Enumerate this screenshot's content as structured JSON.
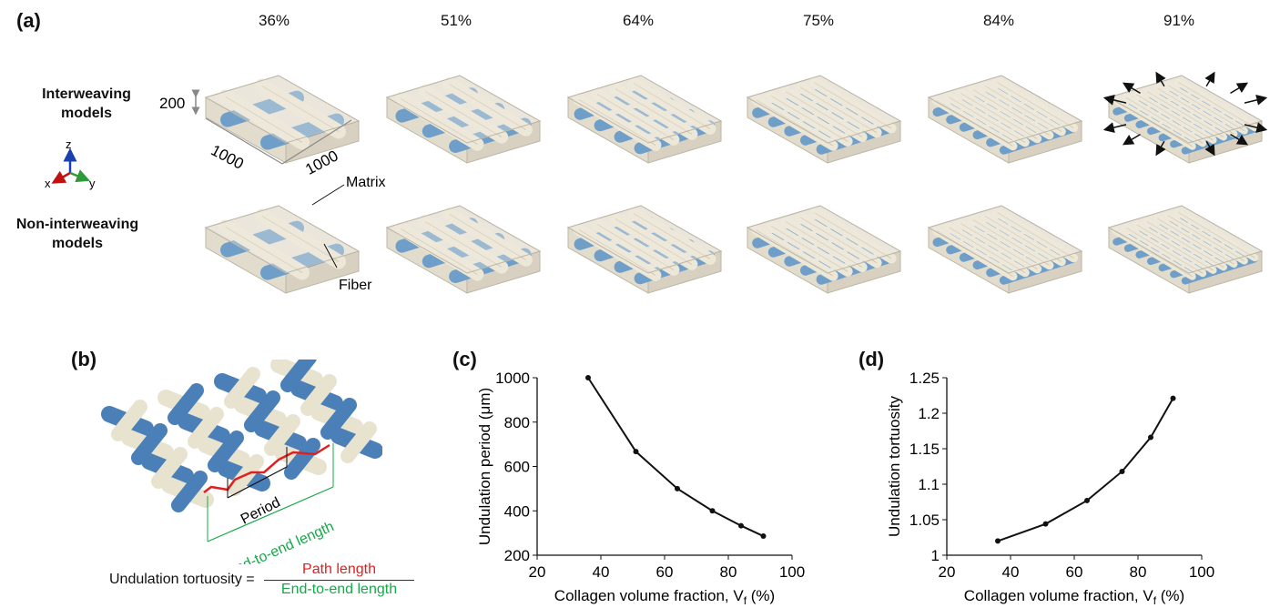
{
  "panel_a": {
    "label": "(a)",
    "volume_fractions": [
      "36%",
      "51%",
      "64%",
      "75%",
      "84%",
      "91%"
    ],
    "row_interweaving": [
      "Interweaving",
      "models"
    ],
    "row_noninterweaving": [
      "Non-interweaving",
      "models"
    ],
    "dim_thickness": "200",
    "dim_length_1": "1000",
    "dim_length_2": "1000",
    "axis_z": "z",
    "axis_x": "x",
    "axis_y": "y",
    "matrix_label": "Matrix",
    "fiber_label": "Fiber"
  },
  "panel_b": {
    "label": "(b)",
    "period_label": "Period",
    "end_to_end_label": "End-to-end length",
    "formula_lhs": "Undulation tortuosity =",
    "formula_numerator": "Path length",
    "formula_denominator": "End-to-end length"
  },
  "colors": {
    "fiber_blue": "#6f9fc9",
    "fiber_cream": "#ece7d6",
    "matrix_box": "#e9e4d9",
    "path_red": "#e02020",
    "length_green": "#17a84a"
  },
  "chart_data": [
    {
      "panel_label": "(c)",
      "type": "line",
      "xlabel_main": "Collagen volume fraction, V",
      "xlabel_sub": "f",
      "xlabel_tail": " (%)",
      "ylabel": "Undulation period (μm)",
      "xlim": [
        20,
        100
      ],
      "ylim": [
        200,
        1000
      ],
      "xticks": [
        "20",
        "40",
        "60",
        "80",
        "100"
      ],
      "yticks": [
        "200",
        "400",
        "600",
        "800",
        "1000"
      ],
      "x": [
        36,
        51,
        64,
        75,
        84,
        91
      ],
      "y": [
        1000,
        667,
        500,
        400,
        333,
        286
      ]
    },
    {
      "panel_label": "(d)",
      "type": "line",
      "xlabel_main": "Collagen volume fraction, V",
      "xlabel_sub": "f",
      "xlabel_tail": " (%)",
      "ylabel": "Undulation tortuosity",
      "xlim": [
        20,
        100
      ],
      "ylim": [
        1,
        1.25
      ],
      "xticks": [
        "20",
        "40",
        "60",
        "80",
        "100"
      ],
      "yticks": [
        "1",
        "1.05",
        "1.1",
        "1.15",
        "1.2",
        "1.25"
      ],
      "x": [
        36,
        51,
        64,
        75,
        84,
        91
      ],
      "y": [
        1.02,
        1.044,
        1.077,
        1.118,
        1.166,
        1.221
      ]
    }
  ]
}
